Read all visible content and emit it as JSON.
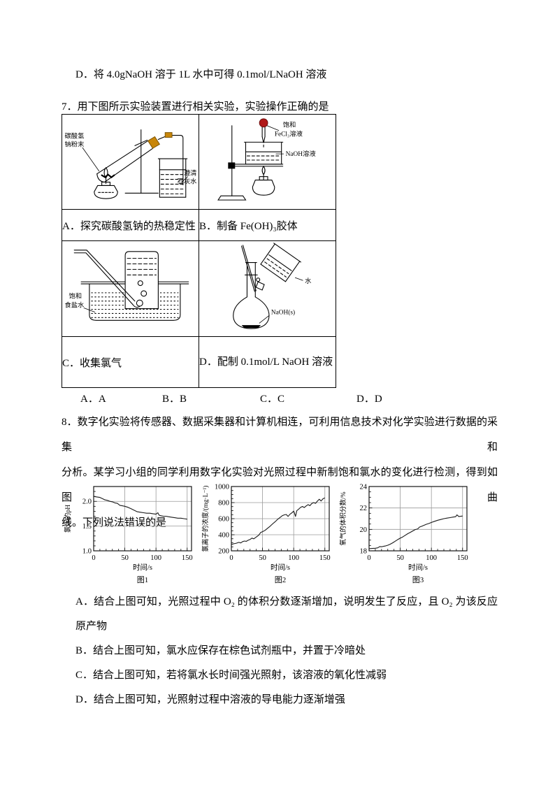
{
  "doc": {
    "prev_option_d": "D．将 4.0gNaOH 溶于 1L 水中可得 0.1mol/LNaOH 溶液",
    "q7": {
      "stem": "7．用下图所示实验装置进行相关实验，实验操作正确的是",
      "captions": {
        "a": "A．探究碳酸氢钠的热稳定性",
        "b": "B．制备 Fe(OH)₃胶体",
        "c": "C．收集氯气",
        "d": "D．配制 0.1mol/L NaOH 溶液"
      },
      "diagram_labels": {
        "a_powder": [
          "碳酸氢",
          "钠粉末"
        ],
        "a_limewater": [
          "澄清",
          "石灰水"
        ],
        "b_saturated": "饱和",
        "b_fecl3": "FeCl₃溶液",
        "b_naoh": "NaOH溶液",
        "c_brine": [
          "饱和",
          "食盐水"
        ],
        "d_water": "水",
        "d_naoh_solid": "NaOH(s)"
      },
      "choices": [
        "A．A",
        "B．B",
        "C．C",
        "D．D"
      ]
    },
    "q8": {
      "stem_lines": [
        "8．数字化实验将传感器、数据采集器和计算机相连，可利用信息技术对化学实验进行数据的采集和",
        "分析。某学习小组的同学利用数字化实验对光照过程中新制饱和氯水的变化进行检测，得到如图曲",
        "线。下列说法错误的是"
      ],
      "options": {
        "a1": "A．结合上图可知，光照过程中 O₂ 的体积分数逐渐增加，说明发生了反应，且 O₂ 为该反应的还",
        "a2": "原产物",
        "b": "B．结合上图可知，氯水应保存在棕色试剂瓶中，并置于冷暗处",
        "c": "C．结合上图可知，若将氯水长时间强光照射，该溶液的氧化性减弱",
        "d": "D．结合上图可知，光照射过程中溶液的导电能力逐渐增强"
      }
    }
  },
  "colors": {
    "stopper_color": "#c8860a",
    "dropper_bulb_color": "#b01818",
    "grid_color": "#9a9a9a",
    "ink_color": "#1a1a1a"
  },
  "chart_data": [
    {
      "type": "line",
      "caption": "图1",
      "ylabel": "氯水的pH",
      "xlabel": "时间/s",
      "xlim": [
        0,
        157
      ],
      "ylim": [
        1.0,
        2.3
      ],
      "xticks": [
        0,
        50,
        100,
        150
      ],
      "yticks": [
        1.0,
        1.5,
        2.0
      ],
      "ytick_labels": [
        "1.0",
        "1.5",
        "2.0"
      ],
      "xminor": 10,
      "yminor": 0.1,
      "grid": true,
      "legend": "none",
      "x": [
        0,
        5,
        10,
        15,
        18,
        22,
        26,
        30,
        34,
        38,
        42,
        46,
        50,
        55,
        60,
        65,
        70,
        75,
        80,
        85,
        90,
        95,
        100,
        103,
        105,
        108,
        112,
        116,
        120,
        125,
        130,
        135,
        140,
        145,
        150
      ],
      "y": [
        2.1,
        2.09,
        2.08,
        2.05,
        2.03,
        2.02,
        2.0,
        1.99,
        1.97,
        1.96,
        1.92,
        1.91,
        1.9,
        1.88,
        1.85,
        1.82,
        1.79,
        1.78,
        1.77,
        1.76,
        1.76,
        1.75,
        1.74,
        1.77,
        1.72,
        1.71,
        1.7,
        1.7,
        1.69,
        1.68,
        1.67,
        1.66,
        1.66,
        1.65,
        1.64
      ]
    },
    {
      "type": "line",
      "caption": "图2",
      "ylabel": "氯离子的浓度/(mg·L⁻¹)",
      "xlabel": "时间/s",
      "xlim": [
        0,
        157
      ],
      "ylim": [
        200,
        1000
      ],
      "xticks": [
        0,
        50,
        100,
        150
      ],
      "yticks": [
        200,
        400,
        600,
        800,
        1000
      ],
      "ytick_labels": [
        "200",
        "400",
        "600",
        "800",
        "1000"
      ],
      "xminor": 10,
      "yminor": 50,
      "grid": true,
      "legend": "none",
      "x": [
        0,
        4,
        8,
        12,
        15,
        18,
        21,
        24,
        27,
        30,
        33,
        36,
        40,
        44,
        47,
        50,
        54,
        58,
        62,
        66,
        70,
        74,
        78,
        82,
        85,
        88,
        91,
        94,
        97,
        100,
        103,
        105,
        108,
        111,
        114,
        117,
        120,
        123,
        126,
        129,
        132,
        135,
        138,
        141,
        144,
        147,
        150
      ],
      "y": [
        278,
        288,
        295,
        305,
        298,
        315,
        322,
        318,
        332,
        342,
        358,
        350,
        372,
        395,
        428,
        438,
        455,
        480,
        505,
        535,
        560,
        590,
        615,
        638,
        648,
        652,
        628,
        655,
        672,
        695,
        628,
        700,
        718,
        740,
        752,
        738,
        758,
        775,
        762,
        788,
        800,
        790,
        818,
        842,
        820,
        848,
        858
      ]
    },
    {
      "type": "line",
      "caption": "图3",
      "ylabel": "氧气的体积分数/%",
      "xlabel": "时间/s",
      "xlim": [
        0,
        157
      ],
      "ylim": [
        18,
        24
      ],
      "xticks": [
        0,
        50,
        100,
        150
      ],
      "yticks": [
        18,
        20,
        22,
        24
      ],
      "ytick_labels": [
        "18",
        "20",
        "22",
        "24"
      ],
      "xminor": 10,
      "yminor": 0.5,
      "grid": true,
      "legend": "none",
      "x": [
        0,
        5,
        10,
        14,
        17,
        20,
        23,
        26,
        30,
        34,
        38,
        42,
        46,
        50,
        54,
        58,
        62,
        66,
        70,
        74,
        78,
        81,
        84,
        88,
        92,
        96,
        100,
        105,
        110,
        115,
        120,
        125,
        130,
        135,
        139,
        141,
        144,
        147,
        150
      ],
      "y": [
        18.2,
        18.22,
        18.24,
        18.28,
        18.4,
        18.38,
        18.42,
        18.45,
        18.52,
        18.62,
        18.75,
        18.9,
        19.05,
        19.18,
        19.3,
        19.45,
        19.6,
        19.72,
        19.85,
        19.98,
        20.05,
        20.22,
        20.28,
        20.38,
        20.48,
        20.55,
        20.65,
        20.75,
        20.85,
        20.92,
        21.0,
        21.05,
        21.1,
        21.15,
        21.18,
        21.35,
        21.2,
        21.22,
        21.25
      ]
    }
  ]
}
